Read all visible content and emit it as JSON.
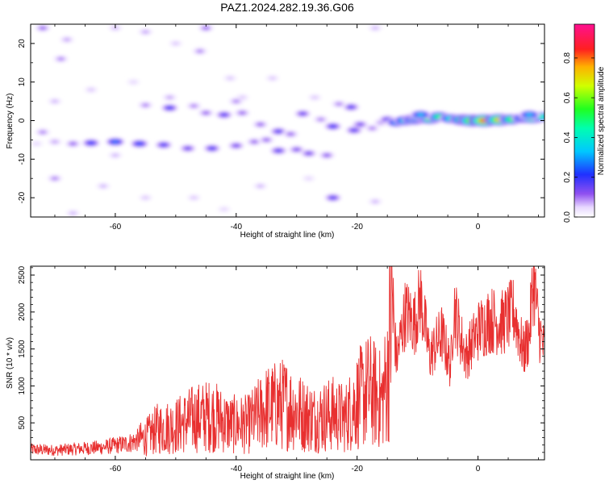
{
  "title": "PAZ1.2024.282.19.36.G06",
  "chart_data": [
    {
      "type": "heatmap",
      "xlabel": "Height of straight line (km)",
      "ylabel": "Frequency (Hz)",
      "xlim": [
        -74,
        11
      ],
      "ylim": [
        -25,
        25
      ],
      "x_ticks": [
        -60,
        -40,
        -20,
        0
      ],
      "y_ticks": [
        -20,
        -10,
        0,
        10,
        20
      ],
      "colorbar": {
        "label": "Normalized spectral amplitude",
        "range": [
          0,
          0.97
        ],
        "ticks": [
          0.0,
          0.2,
          0.4,
          0.6,
          0.8
        ],
        "colormap": "rainbow (white-purple-blue-cyan-green-yellow-red-magenta)"
      },
      "blobs": [
        {
          "x": -72,
          "y": 24,
          "v": 0.12
        },
        {
          "x": -69,
          "y": 16,
          "v": 0.1
        },
        {
          "x": -68,
          "y": 21,
          "v": 0.08
        },
        {
          "x": -60,
          "y": 24,
          "v": 0.07
        },
        {
          "x": -55,
          "y": 23,
          "v": 0.08
        },
        {
          "x": -50,
          "y": 20,
          "v": 0.06
        },
        {
          "x": -46,
          "y": 18,
          "v": 0.1
        },
        {
          "x": -45,
          "y": 24,
          "v": 0.12
        },
        {
          "x": -41,
          "y": 11,
          "v": 0.06
        },
        {
          "x": -17,
          "y": 24,
          "v": 0.07
        },
        {
          "x": -70,
          "y": 5,
          "v": 0.07
        },
        {
          "x": -64,
          "y": 8,
          "v": 0.06
        },
        {
          "x": -57,
          "y": 10,
          "v": 0.05
        },
        {
          "x": -51,
          "y": 6,
          "v": 0.08
        },
        {
          "x": -39,
          "y": 6,
          "v": 0.06
        },
        {
          "x": -72,
          "y": -3,
          "v": 0.1
        },
        {
          "x": -70,
          "y": -15,
          "v": 0.1
        },
        {
          "x": -62,
          "y": -17,
          "v": 0.07
        },
        {
          "x": -55,
          "y": -20,
          "v": 0.06
        },
        {
          "x": -47,
          "y": -20,
          "v": 0.06
        },
        {
          "x": -42,
          "y": -23,
          "v": 0.05
        },
        {
          "x": -36,
          "y": -17,
          "v": 0.07
        },
        {
          "x": -28,
          "y": -15,
          "v": 0.05
        },
        {
          "x": -24,
          "y": -20,
          "v": 0.18
        },
        {
          "x": -17,
          "y": -21,
          "v": 0.07
        },
        {
          "x": -60,
          "y": -9,
          "v": 0.07
        },
        {
          "x": -67,
          "y": -24,
          "v": 0.07
        },
        {
          "x": -34,
          "y": 11,
          "v": 0.06
        },
        {
          "x": -27,
          "y": 6,
          "v": 0.06
        },
        {
          "x": -73,
          "y": -6,
          "v": 0.05
        },
        {
          "x": -70,
          "y": -5.5,
          "v": 0.08
        },
        {
          "x": -67,
          "y": -6,
          "v": 0.12
        },
        {
          "x": -64,
          "y": -5.8,
          "v": 0.22
        },
        {
          "x": -60,
          "y": -5.5,
          "v": 0.28
        },
        {
          "x": -56,
          "y": -6,
          "v": 0.24
        },
        {
          "x": -52,
          "y": -6.3,
          "v": 0.19
        },
        {
          "x": -48,
          "y": -7.2,
          "v": 0.16
        },
        {
          "x": -44,
          "y": -7.2,
          "v": 0.19
        },
        {
          "x": -40,
          "y": -6.5,
          "v": 0.15
        },
        {
          "x": -37,
          "y": -5.5,
          "v": 0.12
        },
        {
          "x": -55,
          "y": 4,
          "v": 0.1
        },
        {
          "x": -51,
          "y": 3.3,
          "v": 0.2
        },
        {
          "x": -47,
          "y": 3.8,
          "v": 0.1
        },
        {
          "x": -45,
          "y": 2,
          "v": 0.12
        },
        {
          "x": -42,
          "y": 1.5,
          "v": 0.18
        },
        {
          "x": -39,
          "y": 2,
          "v": 0.12
        },
        {
          "x": -40,
          "y": 5,
          "v": 0.1
        },
        {
          "x": -36,
          "y": -1,
          "v": 0.12
        },
        {
          "x": -33,
          "y": -2.8,
          "v": 0.18
        },
        {
          "x": -31,
          "y": -3.5,
          "v": 0.12
        },
        {
          "x": -35,
          "y": -5,
          "v": 0.12
        },
        {
          "x": -30,
          "y": -7.5,
          "v": 0.14
        },
        {
          "x": -33,
          "y": -7.8,
          "v": 0.18
        },
        {
          "x": -28,
          "y": -8.5,
          "v": 0.15
        },
        {
          "x": -25,
          "y": -9,
          "v": 0.13
        },
        {
          "x": -29,
          "y": 1.8,
          "v": 0.16
        },
        {
          "x": -26,
          "y": 0.3,
          "v": 0.1
        },
        {
          "x": -24,
          "y": -1.5,
          "v": 0.2
        },
        {
          "x": -21,
          "y": 3.5,
          "v": 0.18
        },
        {
          "x": -23,
          "y": 4.3,
          "v": 0.1
        },
        {
          "x": -19.5,
          "y": -1,
          "v": 0.15
        },
        {
          "x": -20.5,
          "y": -2.5,
          "v": 0.18
        },
        {
          "x": -17.5,
          "y": -2,
          "v": 0.1
        },
        {
          "x": -16,
          "y": -0.5,
          "v": 0.1
        },
        {
          "x": -15,
          "y": 0.3,
          "v": 0.18
        },
        {
          "x": -13.5,
          "y": -0.5,
          "v": 0.35
        },
        {
          "x": -12,
          "y": 0.0,
          "v": 0.48
        },
        {
          "x": -10.5,
          "y": 0.3,
          "v": 0.55
        },
        {
          "x": -9.5,
          "y": 0.8,
          "v": 0.6
        },
        {
          "x": -8,
          "y": 0.5,
          "v": 0.58
        },
        {
          "x": -6.5,
          "y": 1.0,
          "v": 0.5
        },
        {
          "x": -4.5,
          "y": 0.5,
          "v": 0.45
        },
        {
          "x": -2.5,
          "y": 0.2,
          "v": 0.62
        },
        {
          "x": -1,
          "y": 0.0,
          "v": 0.72
        },
        {
          "x": 1,
          "y": 0.0,
          "v": 0.82
        },
        {
          "x": 3.5,
          "y": 0.2,
          "v": 0.75
        },
        {
          "x": 5.5,
          "y": 0.3,
          "v": 0.55
        },
        {
          "x": 7.5,
          "y": 0.6,
          "v": 0.48
        },
        {
          "x": 9,
          "y": 0.8,
          "v": 0.7
        },
        {
          "x": 10.5,
          "y": 1.0,
          "v": 0.45
        },
        {
          "x": -9.5,
          "y": 1.5,
          "v": 0.35
        },
        {
          "x": 8.5,
          "y": 1.5,
          "v": 0.35
        }
      ]
    },
    {
      "type": "line",
      "xlabel": "Height of straight line (km)",
      "ylabel": "SNR (10 * v/v)",
      "xlim": [
        -74,
        11
      ],
      "ylim": [
        0,
        2620
      ],
      "x_ticks": [
        -60,
        -40,
        -20,
        0
      ],
      "y_ticks": [
        500,
        1000,
        1500,
        2000,
        2500
      ],
      "color": "#e83030",
      "anchors": [
        {
          "x": -74,
          "y": 140
        },
        {
          "x": -70,
          "y": 130
        },
        {
          "x": -66,
          "y": 150
        },
        {
          "x": -62,
          "y": 170
        },
        {
          "x": -58,
          "y": 220
        },
        {
          "x": -55,
          "y": 300
        },
        {
          "x": -53,
          "y": 420
        },
        {
          "x": -50,
          "y": 460
        },
        {
          "x": -47,
          "y": 560
        },
        {
          "x": -44,
          "y": 600
        },
        {
          "x": -41,
          "y": 480
        },
        {
          "x": -38,
          "y": 480
        },
        {
          "x": -35,
          "y": 700
        },
        {
          "x": -32,
          "y": 760
        },
        {
          "x": -29,
          "y": 620
        },
        {
          "x": -27,
          "y": 560
        },
        {
          "x": -24,
          "y": 620
        },
        {
          "x": -22,
          "y": 560
        },
        {
          "x": -20,
          "y": 800
        },
        {
          "x": -18,
          "y": 950
        },
        {
          "x": -16,
          "y": 800
        },
        {
          "x": -15,
          "y": 1100
        },
        {
          "x": -14.2,
          "y": 2200
        },
        {
          "x": -13.5,
          "y": 1350
        },
        {
          "x": -12,
          "y": 2000
        },
        {
          "x": -10.5,
          "y": 1850
        },
        {
          "x": -9.5,
          "y": 2200
        },
        {
          "x": -8,
          "y": 1400
        },
        {
          "x": -6,
          "y": 1700
        },
        {
          "x": -4.5,
          "y": 1250
        },
        {
          "x": -4,
          "y": 2100
        },
        {
          "x": -3,
          "y": 1700
        },
        {
          "x": -2,
          "y": 1400
        },
        {
          "x": 0,
          "y": 1750
        },
        {
          "x": 2,
          "y": 1900
        },
        {
          "x": 4,
          "y": 1850
        },
        {
          "x": 6,
          "y": 2000
        },
        {
          "x": 7.5,
          "y": 1450
        },
        {
          "x": 8.5,
          "y": 1700
        },
        {
          "x": 9.2,
          "y": 2500
        },
        {
          "x": 10,
          "y": 1800
        },
        {
          "x": 11,
          "y": 1450
        }
      ]
    }
  ]
}
